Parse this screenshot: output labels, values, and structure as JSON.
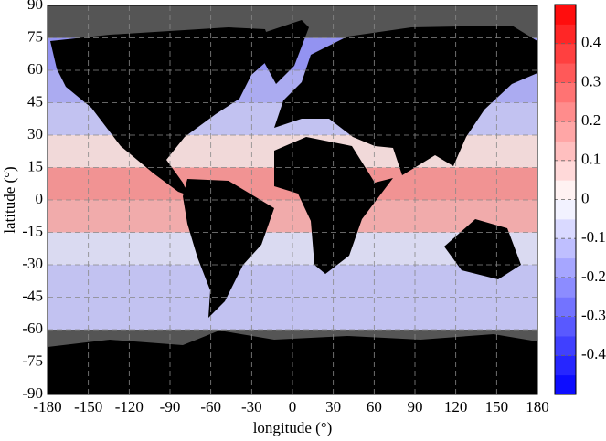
{
  "chart_data": {
    "type": "heatmap",
    "xlabel": "longitude (°)",
    "ylabel": "latitude (°)",
    "xlim": [
      -180,
      180
    ],
    "ylim": [
      -90,
      90
    ],
    "xticks": [
      -180,
      -150,
      -120,
      -90,
      -60,
      -30,
      0,
      30,
      60,
      90,
      120,
      150,
      180
    ],
    "yticks": [
      -90,
      -75,
      -60,
      -45,
      -30,
      -15,
      0,
      15,
      30,
      45,
      60,
      75,
      90
    ],
    "grid": true,
    "ybins": [
      90,
      75,
      60,
      45,
      30,
      15,
      0,
      -15,
      -30,
      -45,
      -60,
      -75,
      -90
    ],
    "values": [
      null,
      -0.2,
      -0.15,
      -0.1,
      0.05,
      0.2,
      0.15,
      -0.05,
      -0.1,
      -0.1,
      null,
      null
    ],
    "missing_color": "#555555",
    "colorbar": {
      "lim": [
        -0.5,
        0.5
      ],
      "ticks": [
        -0.4,
        -0.3,
        -0.2,
        -0.1,
        0,
        0.1,
        0.2,
        0.3,
        0.4
      ],
      "colors": [
        "#0000ff",
        "#ffffff",
        "#ff0000"
      ],
      "levels": 20
    }
  }
}
